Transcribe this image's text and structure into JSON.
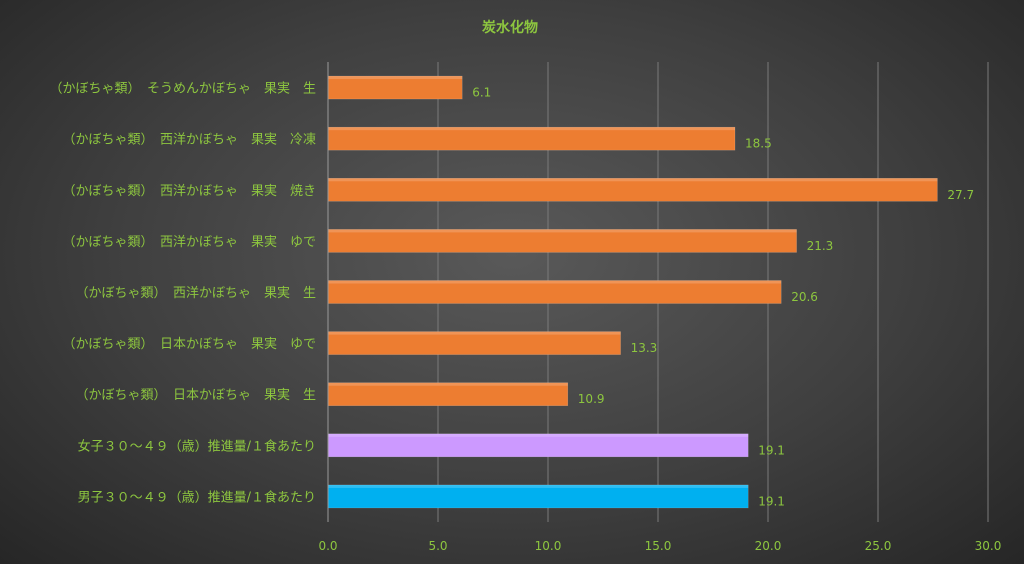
{
  "chart_data": {
    "type": "bar",
    "orientation": "horizontal",
    "title": "炭水化物",
    "categories": [
      "（かぼちゃ類）　そうめんかぼちゃ　果実　生",
      "（かぼちゃ類）　西洋かぼちゃ　果実　冷凍",
      "（かぼちゃ類）　西洋かぼちゃ　果実　焼き",
      "（かぼちゃ類）　西洋かぼちゃ　果実　ゆで",
      "（かぼちゃ類）　西洋かぼちゃ　果実　生",
      "（かぼちゃ類）　日本かぼちゃ　果実　ゆで",
      "（かぼちゃ類）　日本かぼちゃ　果実　生",
      "女子３０～４９（歳）推進量/１食あたり",
      "男子３０～４９（歳）推進量/１食あたり"
    ],
    "values": [
      6.1,
      18.5,
      27.7,
      21.3,
      20.6,
      13.3,
      10.9,
      19.1,
      19.1
    ],
    "value_labels": [
      "6.1",
      "18.5",
      "27.7",
      "21.3",
      "20.6",
      "13.3",
      "10.9",
      "19.1",
      "19.1"
    ],
    "bar_colors": [
      "#ed7d31",
      "#ed7d31",
      "#ed7d31",
      "#ed7d31",
      "#ed7d31",
      "#ed7d31",
      "#ed7d31",
      "#cc99ff",
      "#00b0f0"
    ],
    "xlim": [
      0,
      30
    ],
    "x_ticks": [
      "0.0",
      "5.0",
      "10.0",
      "15.0",
      "20.0",
      "25.0",
      "30.0"
    ],
    "grid": true,
    "legend": "none",
    "text_color": "#8dc63f"
  }
}
